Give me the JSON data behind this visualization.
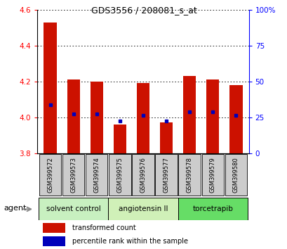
{
  "title": "GDS3556 / 208081_s_at",
  "samples": [
    "GSM399572",
    "GSM399573",
    "GSM399574",
    "GSM399575",
    "GSM399576",
    "GSM399577",
    "GSM399578",
    "GSM399579",
    "GSM399580"
  ],
  "red_values": [
    4.53,
    4.21,
    4.2,
    3.96,
    4.19,
    3.97,
    4.23,
    4.21,
    4.18
  ],
  "blue_values": [
    4.07,
    4.02,
    4.02,
    3.98,
    4.01,
    3.98,
    4.03,
    4.03,
    4.01
  ],
  "ymin": 3.8,
  "ymax": 4.6,
  "left_yticks": [
    3.8,
    4.0,
    4.2,
    4.4,
    4.6
  ],
  "right_yticks": [
    0,
    25,
    50,
    75,
    100
  ],
  "right_yticklabels": [
    "0",
    "25",
    "50",
    "75",
    "100%"
  ],
  "groups": [
    {
      "label": "solvent control",
      "samples": [
        0,
        1,
        2
      ],
      "color": "#c8f0c0"
    },
    {
      "label": "angiotensin II",
      "samples": [
        3,
        4,
        5
      ],
      "color": "#d0f0b8"
    },
    {
      "label": "torcetrapib",
      "samples": [
        6,
        7,
        8
      ],
      "color": "#66dd66"
    }
  ],
  "agent_label": "agent",
  "legend_red": "transformed count",
  "legend_blue": "percentile rank within the sample",
  "bar_color": "#cc1100",
  "dot_color": "#0000bb",
  "sample_box_color": "#cccccc",
  "bar_width": 0.55
}
